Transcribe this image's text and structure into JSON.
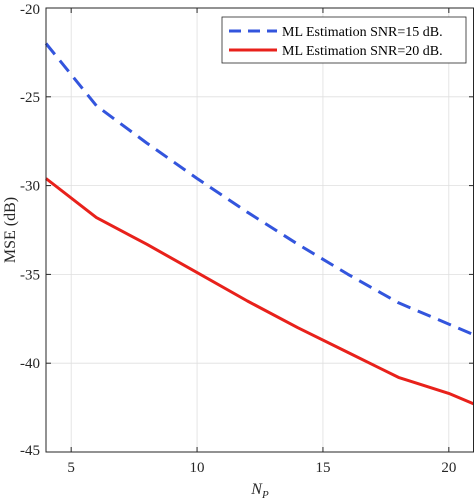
{
  "chart_data": {
    "type": "line",
    "title": "",
    "xlabel": "N",
    "xlabel_subscript": "P",
    "ylabel": "MSE (dB)",
    "xlim": [
      4,
      21
    ],
    "ylim": [
      -45,
      -20
    ],
    "xticks": [
      5,
      10,
      15,
      20
    ],
    "yticks": [
      -20,
      -25,
      -30,
      -35,
      -40,
      -45
    ],
    "grid": true,
    "legend_position": "top-right",
    "series": [
      {
        "name": "ML Estimation SNR=15 dB.",
        "color": "#3355dd",
        "line_style": "dashed",
        "x": [
          4,
          6,
          8,
          10,
          12,
          14,
          16,
          18,
          20,
          21
        ],
        "y": [
          -22.0,
          -25.5,
          -27.6,
          -29.6,
          -31.5,
          -33.3,
          -35.0,
          -36.6,
          -37.8,
          -38.4
        ]
      },
      {
        "name": "ML Estimation SNR=20 dB.",
        "color": "#e8211b",
        "line_style": "solid",
        "x": [
          4,
          6,
          8,
          10,
          12,
          14,
          16,
          18,
          20,
          21
        ],
        "y": [
          -29.6,
          -31.8,
          -33.3,
          -34.9,
          -36.5,
          -38.0,
          -39.4,
          -40.8,
          -41.7,
          -42.3
        ]
      }
    ]
  }
}
